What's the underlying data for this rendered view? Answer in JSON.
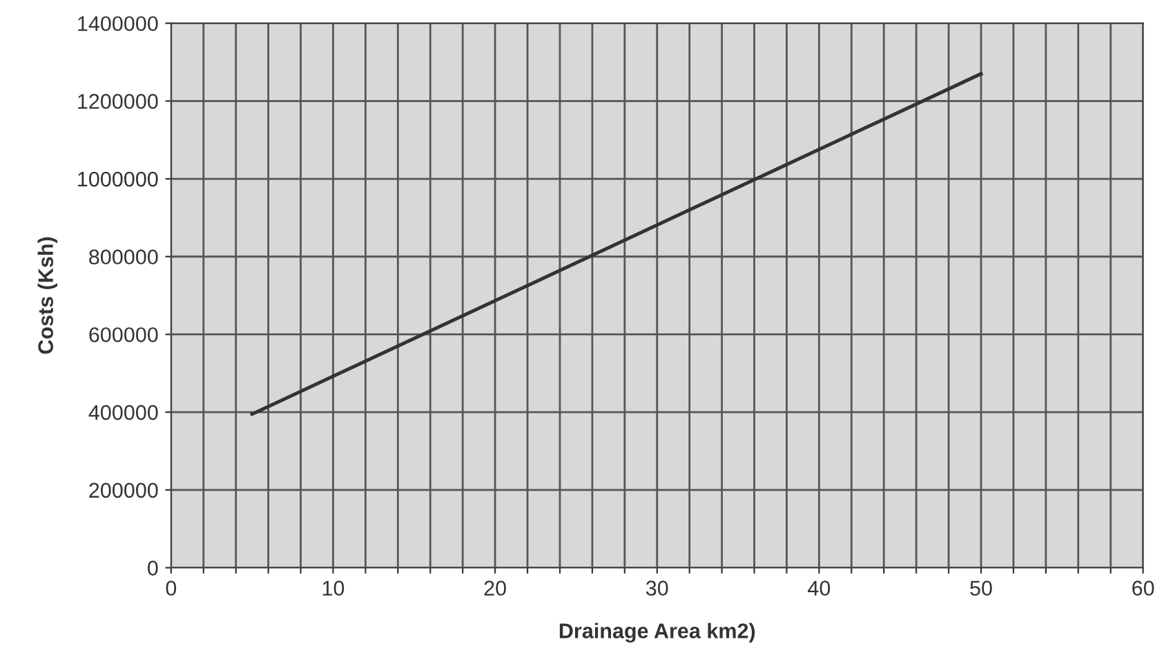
{
  "chart_data": {
    "type": "line",
    "xlabel": "Drainage Area km2)",
    "ylabel": "Costs (Ksh)",
    "series": [
      {
        "color": "#333333",
        "x": [
          5,
          50
        ],
        "values": [
          395000,
          1270000
        ]
      }
    ],
    "xlim": [
      0,
      60
    ],
    "xticks": [
      0,
      {
        "value": 2,
        "label": null
      },
      {
        "value": 4,
        "label": null
      },
      {
        "value": 6,
        "label": null
      },
      {
        "value": 8,
        "label": null
      },
      10,
      {
        "value": 12,
        "label": null
      },
      {
        "value": 14,
        "label": null
      },
      {
        "value": 16,
        "label": null
      },
      {
        "value": 18,
        "label": null
      },
      20,
      {
        "value": 22,
        "label": null
      },
      {
        "value": 24,
        "label": null
      },
      {
        "value": 26,
        "label": null
      },
      {
        "value": 28,
        "label": null
      },
      30,
      {
        "value": 32,
        "label": null
      },
      {
        "value": 34,
        "label": null
      },
      {
        "value": 36,
        "label": null
      },
      {
        "value": 38,
        "label": null
      },
      40,
      {
        "value": 42,
        "label": null
      },
      {
        "value": 44,
        "label": null
      },
      {
        "value": 46,
        "label": null
      },
      {
        "value": 48,
        "label": null
      },
      50,
      {
        "value": 52,
        "label": null
      },
      {
        "value": 54,
        "label": null
      },
      {
        "value": 56,
        "label": null
      },
      {
        "value": 58,
        "label": null
      },
      60
    ],
    "ylim": [
      0,
      1400000
    ],
    "yticks": [
      0,
      200000,
      400000,
      600000,
      800000,
      1000000,
      1200000,
      1400000
    ],
    "grid": true,
    "legend": false,
    "marker": "none",
    "line_style": "solid"
  }
}
